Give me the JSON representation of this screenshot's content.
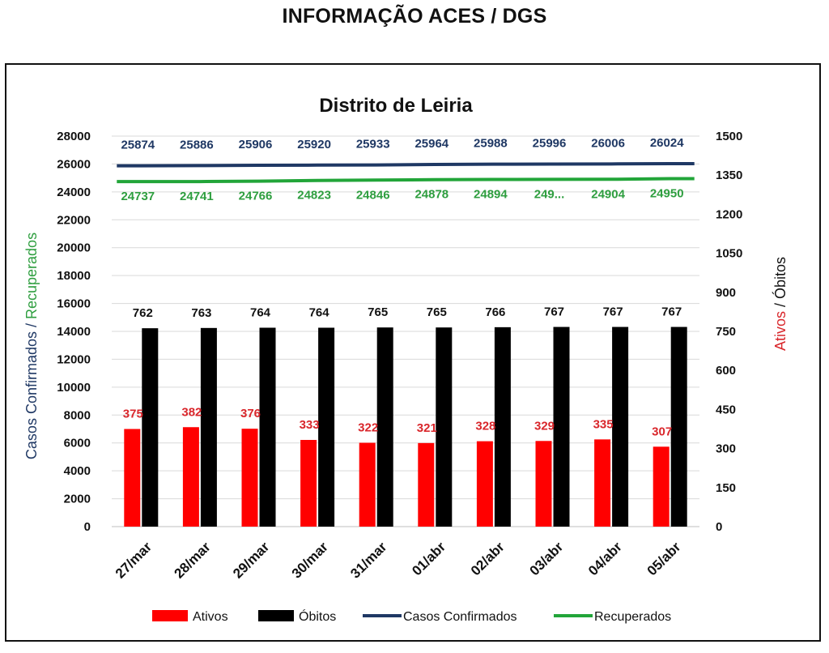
{
  "header": {
    "title": "INFORMAÇÃO ACES / DGS"
  },
  "chart_data": {
    "type": "bar",
    "title": "Distrito de Leiria",
    "categories": [
      "27/mar",
      "28/mar",
      "29/mar",
      "30/mar",
      "31/mar",
      "01/abr",
      "02/abr",
      "03/abr",
      "04/abr",
      "05/abr"
    ],
    "left_axis": {
      "label_part1": "Casos Confirmados",
      "label_sep": " / ",
      "label_part2": "Recuperados",
      "label_part1_color": "#1f3864",
      "label_part2_color": "#2e9e3f",
      "range": [
        0,
        28000
      ],
      "ticks": [
        "0",
        "2000",
        "4000",
        "6000",
        "8000",
        "10000",
        "12000",
        "14000",
        "16000",
        "18000",
        "20000",
        "22000",
        "24000",
        "26000",
        "28000"
      ]
    },
    "right_axis": {
      "label_part1": "Ativos",
      "label_sep": " / ",
      "label_part2": "Óbitos",
      "label_part1_color": "#d9262b",
      "label_part2_color": "#111111",
      "range": [
        0,
        1500
      ],
      "ticks": [
        "0",
        "150",
        "300",
        "450",
        "600",
        "750",
        "900",
        "1050",
        "1200",
        "1350",
        "1500"
      ]
    },
    "grid": true,
    "legend_position": "bottom",
    "series": [
      {
        "name": "Ativos",
        "type": "bar",
        "axis": "right",
        "color": "#ff0000",
        "label_color": "#d9262b",
        "values": [
          375,
          382,
          376,
          333,
          322,
          321,
          328,
          329,
          335,
          307
        ],
        "labels": [
          "375",
          "382",
          "376",
          "333",
          "322",
          "321",
          "328",
          "329",
          "335",
          "307"
        ]
      },
      {
        "name": "Óbitos",
        "type": "bar",
        "axis": "right",
        "color": "#000000",
        "label_color": "#111111",
        "values": [
          762,
          763,
          764,
          764,
          765,
          765,
          766,
          767,
          767,
          767
        ],
        "labels": [
          "762",
          "763",
          "764",
          "764",
          "765",
          "765",
          "766",
          "767",
          "767",
          "767"
        ]
      },
      {
        "name": "Casos Confirmados",
        "type": "line",
        "axis": "left",
        "color": "#1f3864",
        "label_color": "#1f3864",
        "values": [
          25874,
          25886,
          25906,
          25920,
          25933,
          25964,
          25988,
          25996,
          26006,
          26024
        ],
        "labels": [
          "25874",
          "25886",
          "25906",
          "25920",
          "25933",
          "25964",
          "25988",
          "25996",
          "26006",
          "26024"
        ]
      },
      {
        "name": "Recuperados",
        "type": "line",
        "axis": "left",
        "color": "#22a539",
        "label_color": "#2e9e3f",
        "values": [
          24737,
          24741,
          24766,
          24823,
          24846,
          24878,
          24894,
          24898,
          24904,
          24950
        ],
        "labels": [
          "24737",
          "24741",
          "24766",
          "24823",
          "24846",
          "24878",
          "24894",
          "249...",
          "24904",
          "24950"
        ]
      }
    ]
  }
}
